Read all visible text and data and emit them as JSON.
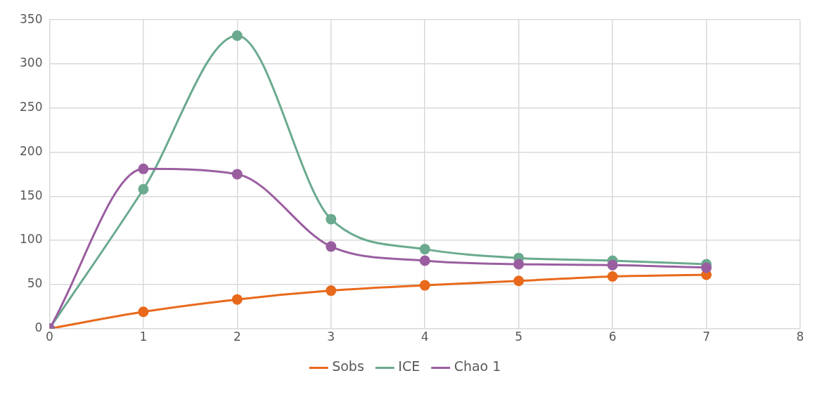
{
  "chart_data": {
    "type": "line",
    "x": [
      0,
      1,
      2,
      3,
      4,
      5,
      6,
      7
    ],
    "series": [
      {
        "name": "Sobs",
        "color": "#e8691b",
        "values": [
          0,
          19,
          33,
          43,
          49,
          54,
          59,
          61
        ]
      },
      {
        "name": "ICE",
        "color": "#6aaa8e",
        "values": [
          0,
          158,
          332,
          124,
          90,
          80,
          77,
          73
        ]
      },
      {
        "name": "Chao 1",
        "color": "#9a5ea0",
        "values": [
          0,
          181,
          175,
          93,
          77,
          73,
          72,
          69
        ]
      }
    ],
    "xlim": [
      0,
      8
    ],
    "xticks": [
      0,
      1,
      2,
      3,
      4,
      5,
      6,
      7,
      8
    ],
    "ylim": [
      0,
      350
    ],
    "yticks": [
      0,
      50,
      100,
      150,
      200,
      250,
      300,
      350
    ],
    "grid": true,
    "legend": "bottom",
    "marker": "circle",
    "line_style": "solid"
  }
}
